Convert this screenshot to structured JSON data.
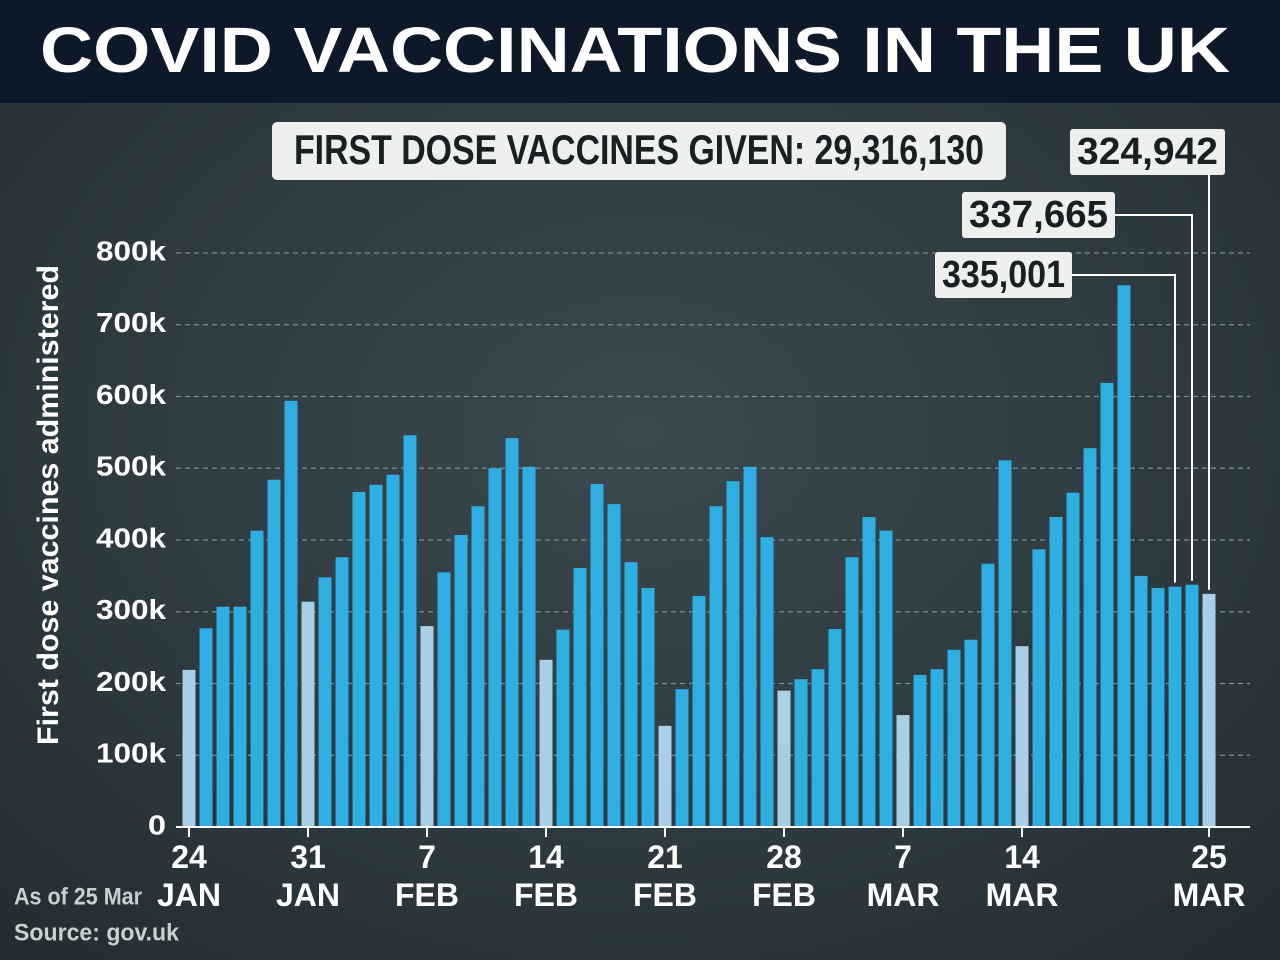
{
  "chart_data": {
    "type": "bar",
    "title": "COVID VACCINATIONS IN THE UK",
    "subtitle": "FIRST DOSE VACCINES GIVEN: 29,316,130",
    "y_label": "First dose vaccines administered",
    "notes": [
      "As of 25 Mar",
      "Source: gov.uk"
    ],
    "categories": [
      "24 JAN",
      null,
      null,
      null,
      null,
      null,
      null,
      "31 JAN",
      null,
      null,
      null,
      null,
      null,
      null,
      "7 FEB",
      null,
      null,
      null,
      null,
      null,
      null,
      "14 FEB",
      null,
      null,
      null,
      null,
      null,
      null,
      "21 FEB",
      null,
      null,
      null,
      null,
      null,
      null,
      "28 FEB",
      null,
      null,
      null,
      null,
      null,
      null,
      "7 MAR",
      null,
      null,
      null,
      null,
      null,
      null,
      "14 MAR",
      null,
      null,
      null,
      null,
      null,
      null,
      null,
      null,
      null,
      null,
      "25 MAR"
    ],
    "values": [
      219000,
      277000,
      307000,
      307000,
      413000,
      484000,
      594000,
      314000,
      348000,
      376000,
      467000,
      477000,
      491000,
      546000,
      280000,
      355000,
      407000,
      447000,
      500000,
      542000,
      502000,
      233000,
      275000,
      361000,
      478000,
      450000,
      369000,
      333000,
      141000,
      192000,
      322000,
      447000,
      482000,
      502000,
      404000,
      190000,
      206000,
      220000,
      276000,
      376000,
      432000,
      413000,
      156000,
      212000,
      220000,
      247000,
      261000,
      367000,
      511000,
      252000,
      387000,
      432000,
      466000,
      528000,
      619000,
      755000,
      350000,
      333000,
      335001,
      337665,
      324942
    ],
    "value_labels": [
      null,
      null,
      null,
      null,
      null,
      null,
      null,
      null,
      null,
      null,
      null,
      null,
      null,
      null,
      null,
      null,
      null,
      null,
      null,
      null,
      null,
      null,
      null,
      null,
      null,
      null,
      null,
      null,
      null,
      null,
      null,
      null,
      null,
      null,
      null,
      null,
      null,
      null,
      null,
      null,
      null,
      null,
      null,
      null,
      null,
      null,
      null,
      null,
      null,
      null,
      null,
      null,
      null,
      null,
      null,
      null,
      null,
      null,
      "335,001",
      "337,665",
      "324,942"
    ],
    "colors": [
      "#a9cfe4",
      "#2eaee3",
      "#2eaee3",
      "#2eaee3",
      "#2eaee3",
      "#2eaee3",
      "#2eaee3",
      "#a9cfe4",
      "#2eaee3",
      "#2eaee3",
      "#2eaee3",
      "#2eaee3",
      "#2eaee3",
      "#2eaee3",
      "#a9cfe4",
      "#2eaee3",
      "#2eaee3",
      "#2eaee3",
      "#2eaee3",
      "#2eaee3",
      "#2eaee3",
      "#a9cfe4",
      "#2eaee3",
      "#2eaee3",
      "#2eaee3",
      "#2eaee3",
      "#2eaee3",
      "#2eaee3",
      "#a9cfe4",
      "#2eaee3",
      "#2eaee3",
      "#2eaee3",
      "#2eaee3",
      "#2eaee3",
      "#2eaee3",
      "#a9cfe4",
      "#2eaee3",
      "#2eaee3",
      "#2eaee3",
      "#2eaee3",
      "#2eaee3",
      "#2eaee3",
      "#a9cfe4",
      "#2eaee3",
      "#2eaee3",
      "#2eaee3",
      "#2eaee3",
      "#2eaee3",
      "#2eaee3",
      "#a9cfe4",
      "#2eaee3",
      "#2eaee3",
      "#2eaee3",
      "#2eaee3",
      "#2eaee3",
      "#2eaee3",
      "#2eaee3",
      "#2eaee3",
      "#2eaee3",
      "#2eaee3",
      "#a9cfe4"
    ],
    "ylim": [
      0,
      800000
    ],
    "yticks": [
      0,
      {
        "value": 100000,
        "label": "100k"
      },
      {
        "value": 200000,
        "label": "200k"
      },
      {
        "value": 300000,
        "label": "300k"
      },
      {
        "value": 400000,
        "label": "400k"
      },
      {
        "value": 500000,
        "label": "500k"
      },
      {
        "value": 600000,
        "label": "600k"
      },
      {
        "value": 700000,
        "label": "700k"
      },
      {
        "value": 800000,
        "label": "800k"
      }
    ],
    "grid": true
  }
}
